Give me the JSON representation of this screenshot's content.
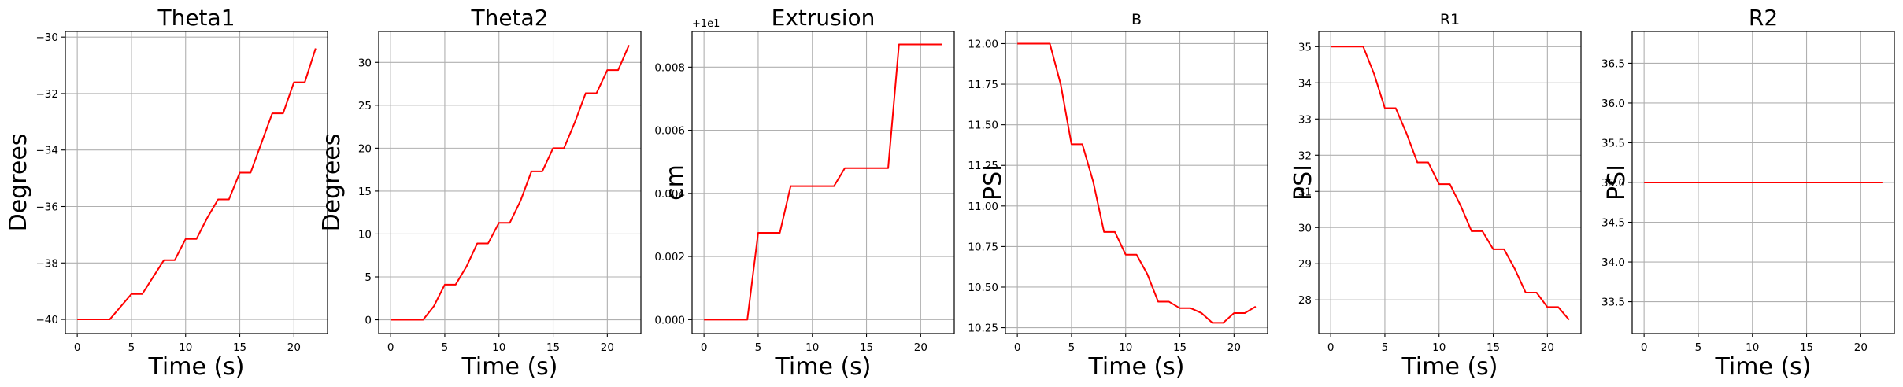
{
  "line_color": "#ff0000",
  "grid_color": "#b0b0b0",
  "chart_data": [
    {
      "type": "line",
      "title": "Theta1",
      "title_size": "large",
      "xlabel": "Time (s)",
      "ylabel": "Degrees",
      "xlim": [
        -1.1,
        23.1
      ],
      "ylim": [
        -40.5,
        -29.8
      ],
      "xticks": [
        0,
        5,
        10,
        15,
        20
      ],
      "xtick_labels": [
        "0",
        "5",
        "10",
        "15",
        "20"
      ],
      "yticks": [
        -40,
        -38,
        -36,
        -34,
        -32,
        -30
      ],
      "ytick_labels": [
        "−40",
        "−38",
        "−36",
        "−34",
        "−32",
        "−30"
      ],
      "offset_label": "",
      "grid": true,
      "series": [
        {
          "x": [
            0,
            1,
            2,
            3,
            4,
            5,
            6,
            7,
            8,
            9,
            10,
            11,
            12,
            13,
            14,
            15,
            16,
            17,
            18,
            19,
            20,
            21,
            22
          ],
          "y": [
            -40,
            -40,
            -40,
            -40,
            -39.55,
            -39.1,
            -39.1,
            -38.5,
            -37.9,
            -37.9,
            -37.15,
            -37.15,
            -36.4,
            -35.75,
            -35.75,
            -34.8,
            -34.8,
            -33.75,
            -32.7,
            -32.7,
            -31.6,
            -31.6,
            -30.4
          ]
        }
      ]
    },
    {
      "type": "line",
      "title": "Theta2",
      "title_size": "large",
      "xlabel": "Time (s)",
      "ylabel": "Degrees",
      "xlim": [
        -1.1,
        23.1
      ],
      "ylim": [
        -1.6,
        33.6
      ],
      "xticks": [
        0,
        5,
        10,
        15,
        20
      ],
      "xtick_labels": [
        "0",
        "5",
        "10",
        "15",
        "20"
      ],
      "yticks": [
        0,
        5,
        10,
        15,
        20,
        25,
        30
      ],
      "ytick_labels": [
        "0",
        "5",
        "10",
        "15",
        "20",
        "25",
        "30"
      ],
      "offset_label": "",
      "grid": true,
      "series": [
        {
          "x": [
            0,
            1,
            2,
            3,
            4,
            5,
            6,
            7,
            8,
            9,
            10,
            11,
            12,
            13,
            14,
            15,
            16,
            17,
            18,
            19,
            20,
            21,
            22
          ],
          "y": [
            0,
            0,
            0,
            0,
            1.6,
            4.1,
            4.1,
            6.2,
            8.9,
            8.9,
            11.3,
            11.3,
            13.9,
            17.3,
            17.3,
            20.0,
            20.0,
            23.0,
            26.4,
            26.4,
            29.1,
            29.1,
            32.0
          ]
        }
      ]
    },
    {
      "type": "line",
      "title": "Extrusion",
      "title_size": "large",
      "xlabel": "Time (s)",
      "ylabel": "cm",
      "xlim": [
        -1.1,
        23.1
      ],
      "ylim": [
        -0.00044,
        0.00913
      ],
      "xticks": [
        0,
        5,
        10,
        15,
        20
      ],
      "xtick_labels": [
        "0",
        "5",
        "10",
        "15",
        "20"
      ],
      "yticks": [
        0,
        0.002,
        0.004,
        0.006,
        0.008
      ],
      "ytick_labels": [
        "0.000",
        "0.002",
        "0.004",
        "0.006",
        "0.008"
      ],
      "offset_label": "+1e1",
      "grid": true,
      "series": [
        {
          "x": [
            0,
            1,
            2,
            3,
            4,
            5,
            6,
            7,
            8,
            9,
            10,
            11,
            12,
            13,
            14,
            15,
            16,
            17,
            18,
            19,
            20,
            21,
            22
          ],
          "y": [
            0,
            0,
            0,
            0,
            0,
            0.00275,
            0.00275,
            0.00275,
            0.00423,
            0.00423,
            0.00423,
            0.00423,
            0.00423,
            0.0048,
            0.0048,
            0.0048,
            0.0048,
            0.0048,
            0.00872,
            0.00872,
            0.00872,
            0.00872,
            0.00872
          ]
        }
      ]
    },
    {
      "type": "line",
      "title": "B",
      "title_size": "small",
      "xlabel": "Time (s)",
      "ylabel": "PSI",
      "xlim": [
        -1.1,
        23.1
      ],
      "ylim": [
        10.214,
        12.075
      ],
      "xticks": [
        0,
        5,
        10,
        15,
        20
      ],
      "xtick_labels": [
        "0",
        "5",
        "10",
        "15",
        "20"
      ],
      "yticks": [
        10.25,
        10.5,
        10.75,
        11.0,
        11.25,
        11.5,
        11.75,
        12.0
      ],
      "ytick_labels": [
        "10.25",
        "10.50",
        "10.75",
        "11.00",
        "11.25",
        "11.50",
        "11.75",
        "12.00"
      ],
      "offset_label": "",
      "grid": true,
      "series": [
        {
          "x": [
            0,
            1,
            2,
            3,
            4,
            5,
            6,
            7,
            8,
            9,
            10,
            11,
            12,
            13,
            14,
            15,
            16,
            17,
            18,
            19,
            20,
            21,
            22
          ],
          "y": [
            12.0,
            12.0,
            12.0,
            12.0,
            11.75,
            11.38,
            11.38,
            11.15,
            10.84,
            10.84,
            10.7,
            10.7,
            10.58,
            10.41,
            10.41,
            10.37,
            10.37,
            10.34,
            10.28,
            10.28,
            10.34,
            10.34,
            10.38
          ]
        }
      ]
    },
    {
      "type": "line",
      "title": "R1",
      "title_size": "small",
      "xlabel": "Time (s)",
      "ylabel": "PSI",
      "xlim": [
        -1.1,
        23.1
      ],
      "ylim": [
        27.07,
        35.42
      ],
      "xticks": [
        0,
        5,
        10,
        15,
        20
      ],
      "xtick_labels": [
        "0",
        "5",
        "10",
        "15",
        "20"
      ],
      "yticks": [
        28,
        29,
        30,
        31,
        32,
        33,
        34,
        35
      ],
      "ytick_labels": [
        "28",
        "29",
        "30",
        "31",
        "32",
        "33",
        "34",
        "35"
      ],
      "offset_label": "",
      "grid": true,
      "series": [
        {
          "x": [
            0,
            1,
            2,
            3,
            4,
            5,
            6,
            7,
            8,
            9,
            10,
            11,
            12,
            13,
            14,
            15,
            16,
            17,
            18,
            19,
            20,
            21,
            22
          ],
          "y": [
            35.0,
            35.0,
            35.0,
            35.0,
            34.25,
            33.3,
            33.3,
            32.6,
            31.8,
            31.8,
            31.2,
            31.2,
            30.6,
            29.9,
            29.9,
            29.4,
            29.4,
            28.85,
            28.2,
            28.2,
            27.8,
            27.8,
            27.45
          ]
        }
      ]
    },
    {
      "type": "line",
      "title": "R2",
      "title_size": "large",
      "xlabel": "Time (s)",
      "ylabel": "PSI",
      "xlim": [
        -1.1,
        23.1
      ],
      "ylim": [
        33.1,
        36.9
      ],
      "xticks": [
        0,
        5,
        10,
        15,
        20
      ],
      "xtick_labels": [
        "0",
        "5",
        "10",
        "15",
        "20"
      ],
      "yticks": [
        33.5,
        34.0,
        34.5,
        35.0,
        35.5,
        36.0,
        36.5
      ],
      "ytick_labels": [
        "33.5",
        "34.0",
        "34.5",
        "35.0",
        "35.5",
        "36.0",
        "36.5"
      ],
      "offset_label": "",
      "grid": true,
      "series": [
        {
          "x": [
            0,
            22
          ],
          "y": [
            35.0,
            35.0
          ]
        }
      ]
    }
  ]
}
